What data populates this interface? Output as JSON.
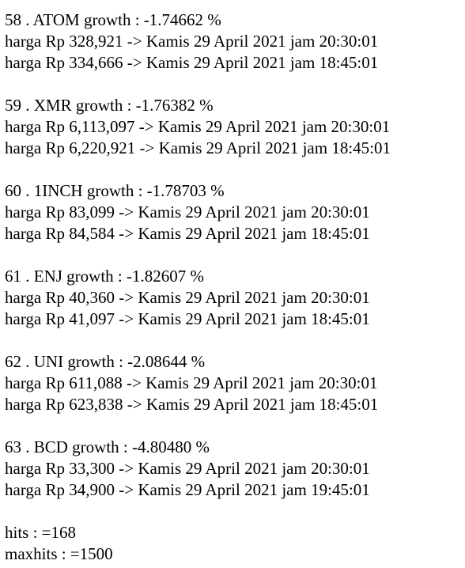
{
  "entries": [
    {
      "header": "58 . ATOM growth : -1.74662 %",
      "prices": [
        "harga Rp 328,921 -> Kamis 29 April 2021 jam 20:30:01",
        "harga Rp 334,666 -> Kamis 29 April 2021 jam 18:45:01"
      ]
    },
    {
      "header": "59 . XMR growth : -1.76382 %",
      "prices": [
        "harga Rp 6,113,097 -> Kamis 29 April 2021 jam 20:30:01",
        "harga Rp 6,220,921 -> Kamis 29 April 2021 jam 18:45:01"
      ]
    },
    {
      "header": "60 . 1INCH growth : -1.78703 %",
      "prices": [
        "harga Rp 83,099 -> Kamis 29 April 2021 jam 20:30:01",
        "harga Rp 84,584 -> Kamis 29 April 2021 jam 18:45:01"
      ]
    },
    {
      "header": "61 . ENJ growth : -1.82607 %",
      "prices": [
        "harga Rp 40,360 -> Kamis 29 April 2021 jam 20:30:01",
        "harga Rp 41,097 -> Kamis 29 April 2021 jam 18:45:01"
      ]
    },
    {
      "header": "62 . UNI growth : -2.08644 %",
      "prices": [
        "harga Rp 611,088 -> Kamis 29 April 2021 jam 20:30:01",
        "harga Rp 623,838 -> Kamis 29 April 2021 jam 18:45:01"
      ]
    },
    {
      "header": "63 . BCD growth : -4.80480 %",
      "prices": [
        "harga Rp 33,300 -> Kamis 29 April 2021 jam 20:30:01",
        "harga Rp 34,900 -> Kamis 29 April 2021 jam 19:45:01"
      ]
    }
  ],
  "footer": {
    "hits": "hits : =168",
    "maxhits": "maxhits : =1500"
  }
}
